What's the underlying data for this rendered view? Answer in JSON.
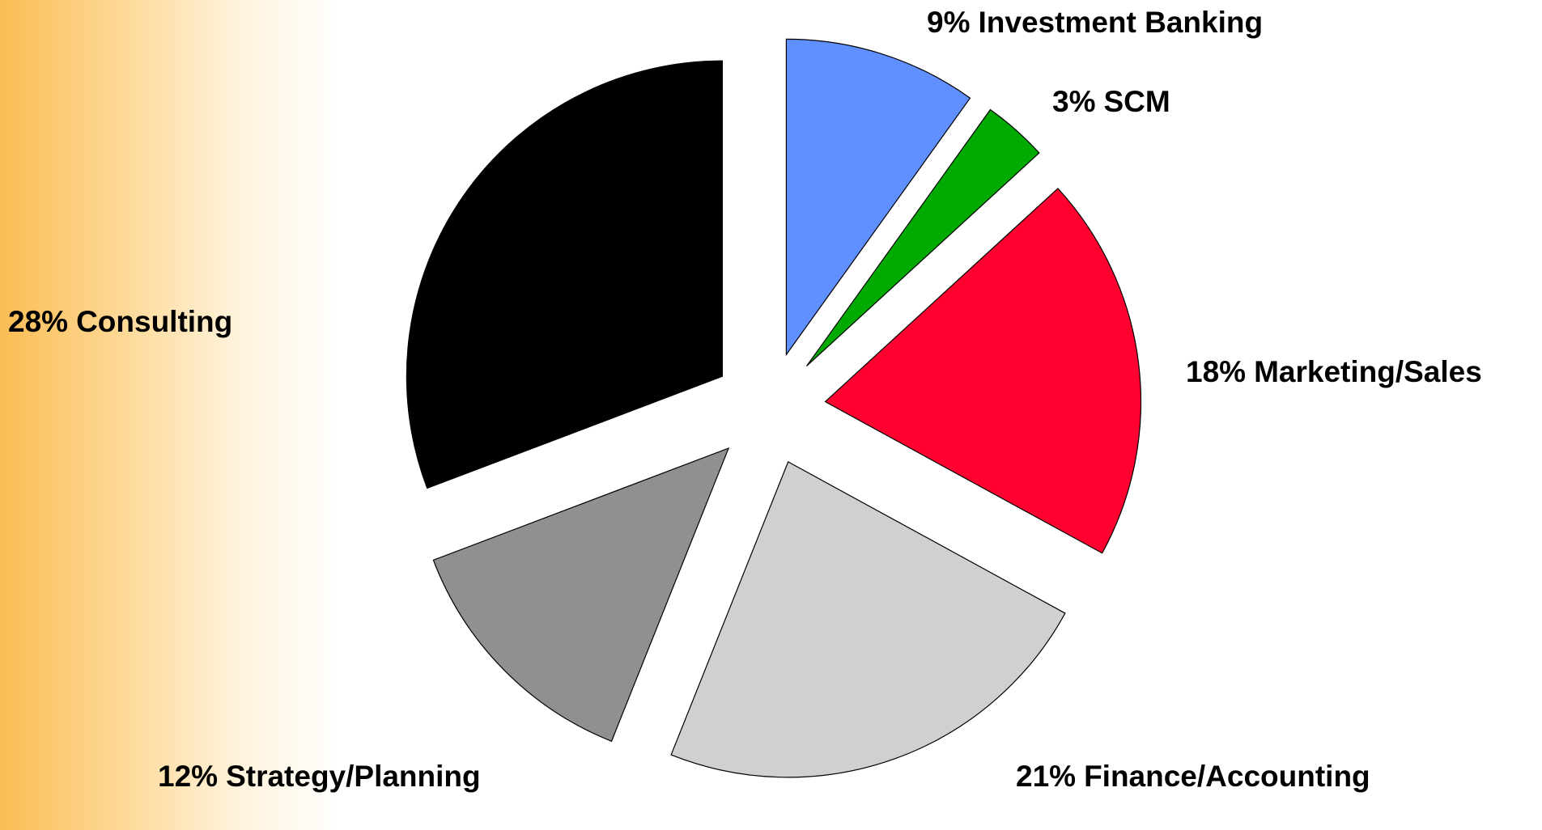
{
  "chart_data": {
    "type": "pie",
    "categories": [
      "Investment Banking",
      "SCM",
      "Marketing/Sales",
      "Finance/Accounting",
      "Strategy/Planning",
      "Consulting"
    ],
    "values": [
      9,
      3,
      18,
      21,
      12,
      28
    ],
    "value_labels": [
      "9%",
      "3%",
      "18%",
      "21%",
      "12%",
      "28%"
    ],
    "colors": [
      "#6090ff",
      "#00aa00",
      "#ff0030",
      "#d0d0d0",
      "#909090",
      "#000000"
    ]
  }
}
